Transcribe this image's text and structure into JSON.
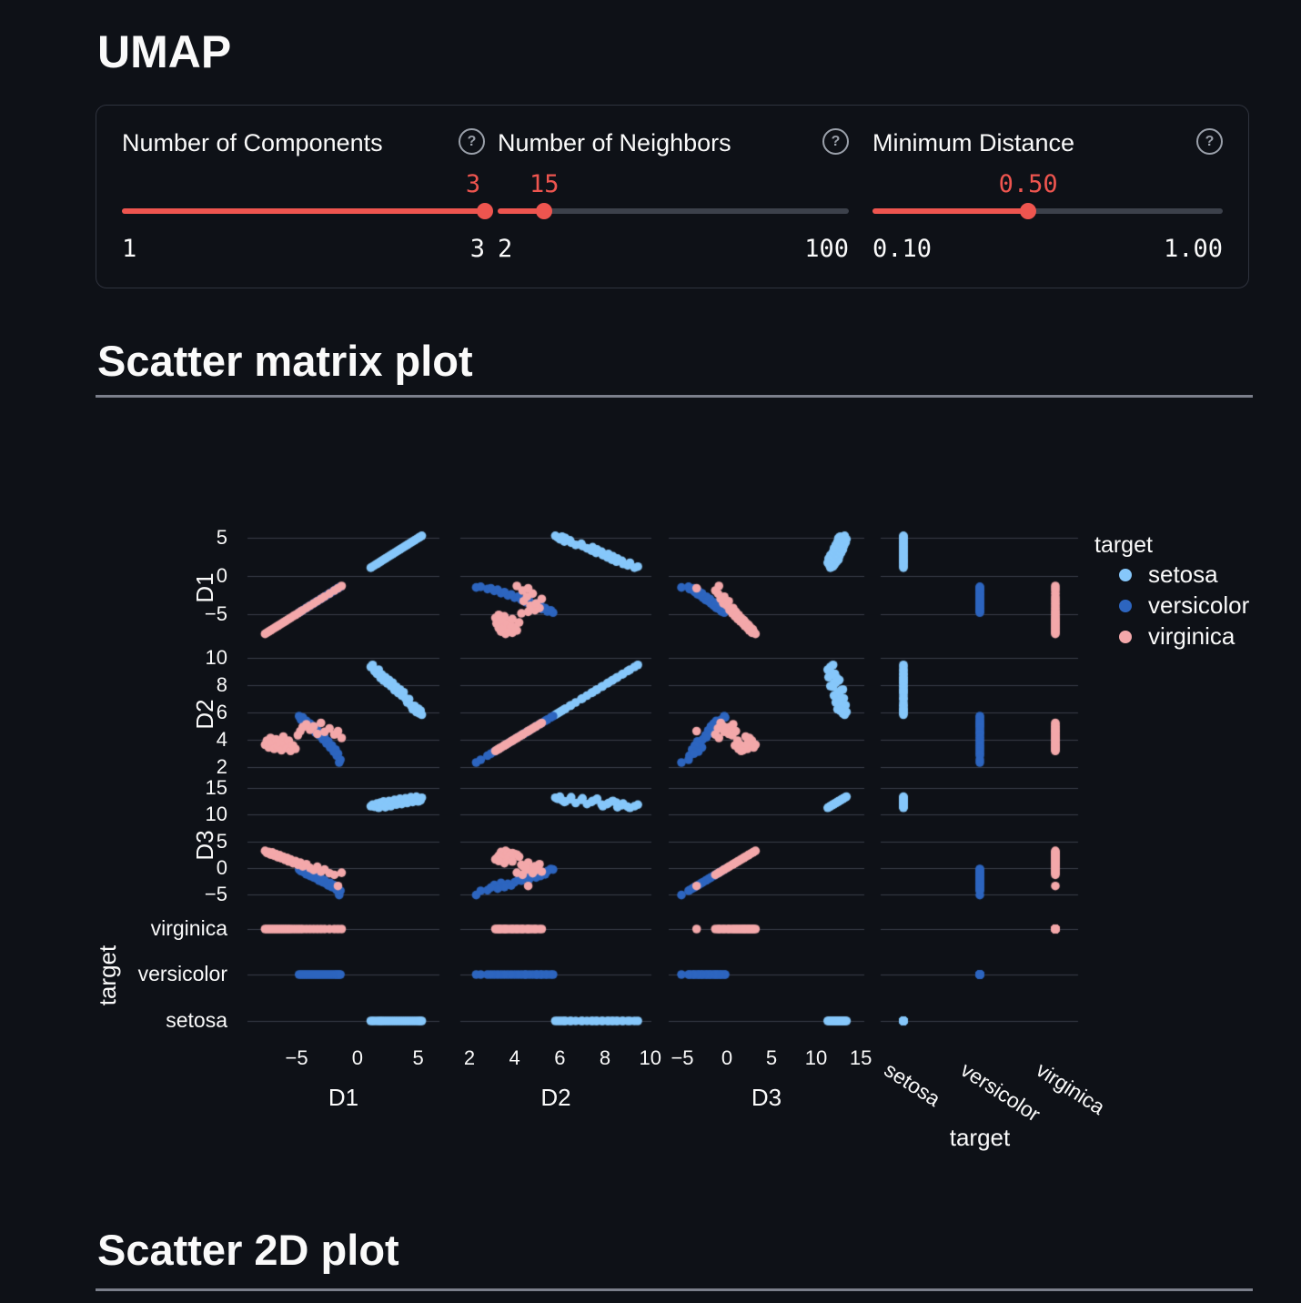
{
  "page": {
    "title": "UMAP"
  },
  "sections": {
    "matrix_heading": "Scatter matrix plot",
    "scatter2d_heading": "Scatter 2D plot"
  },
  "sliders": [
    {
      "label": "Number of Components",
      "value": "3",
      "min": "1",
      "max": "3"
    },
    {
      "label": "Number of Neighbors",
      "value": "15",
      "min": "2",
      "max": "100"
    },
    {
      "label": "Minimum Distance",
      "value": "0.50",
      "min": "0.10",
      "max": "1.00"
    }
  ],
  "colors": {
    "accent": "#ee554f",
    "track": "#3c414b",
    "grid": "#3a3e4a",
    "text": "#fafafa"
  },
  "chart_data": {
    "type": "scatter",
    "subtype": "scatter-matrix",
    "title": "Scatter matrix plot",
    "dims": [
      "D1",
      "D2",
      "D3",
      "target"
    ],
    "legend": {
      "title": "target",
      "items": [
        {
          "label": "setosa",
          "color": "#86c7fa"
        },
        {
          "label": "versicolor",
          "color": "#2d65bf"
        },
        {
          "label": "virginica",
          "color": "#f3a8aa"
        }
      ]
    },
    "x_axes": [
      {
        "label": "D1",
        "ticks": [
          -5,
          0,
          5
        ],
        "range": [
          -9.05,
          6.75
        ]
      },
      {
        "label": "D2",
        "ticks": [
          2,
          4,
          6,
          8,
          10
        ],
        "range": [
          1.6,
          10.05
        ]
      },
      {
        "label": "D3",
        "ticks": [
          -5,
          0,
          5,
          10,
          15
        ],
        "range": [
          -6.53,
          15.4
        ]
      },
      {
        "label": "target",
        "categories": [
          "setosa",
          "versicolor",
          "virginica"
        ]
      }
    ],
    "y_axes": [
      {
        "label": "D1",
        "ticks": [
          5,
          0,
          -5
        ],
        "range": [
          -9.2,
          6.0
        ]
      },
      {
        "label": "D2",
        "ticks": [
          10,
          8,
          6,
          4,
          2
        ],
        "range": [
          1.3,
          10.3
        ]
      },
      {
        "label": "D3",
        "ticks": [
          15,
          10,
          5,
          0,
          -5
        ],
        "range": [
          -7.9,
          16.4
        ]
      },
      {
        "label": "target",
        "categories": [
          "virginica",
          "versicolor",
          "setosa"
        ]
      }
    ],
    "series": [
      {
        "name": "setosa",
        "color": "#86c7fa",
        "points": [
          [
            1.1,
            9.3,
            11.6
          ],
          [
            1.25,
            9.45,
            11.9
          ],
          [
            1.4,
            9.0,
            11.5
          ],
          [
            1.6,
            8.8,
            12.1
          ],
          [
            1.75,
            9.1,
            11.3
          ],
          [
            1.9,
            8.5,
            12.3
          ],
          [
            2.0,
            8.75,
            11.8
          ],
          [
            2.15,
            8.3,
            12.5
          ],
          [
            2.3,
            8.55,
            11.4
          ],
          [
            2.45,
            8.1,
            12.0
          ],
          [
            2.6,
            8.35,
            12.6
          ],
          [
            2.75,
            7.9,
            11.6
          ],
          [
            2.9,
            8.15,
            12.2
          ],
          [
            3.05,
            7.6,
            12.8
          ],
          [
            3.2,
            7.85,
            11.9
          ],
          [
            3.35,
            7.4,
            12.4
          ],
          [
            3.5,
            7.65,
            13.0
          ],
          [
            3.65,
            7.2,
            12.0
          ],
          [
            3.8,
            7.45,
            12.6
          ],
          [
            3.95,
            7.0,
            13.1
          ],
          [
            4.1,
            6.7,
            12.2
          ],
          [
            4.25,
            6.95,
            12.8
          ],
          [
            4.4,
            6.5,
            13.3
          ],
          [
            4.55,
            6.2,
            12.4
          ],
          [
            4.7,
            6.45,
            12.9
          ],
          [
            4.85,
            6.0,
            13.4
          ],
          [
            5.0,
            6.25,
            12.5
          ],
          [
            5.1,
            5.9,
            13.0
          ],
          [
            5.2,
            6.1,
            12.7
          ],
          [
            5.3,
            5.8,
            13.2
          ]
        ]
      },
      {
        "name": "versicolor",
        "color": "#2d65bf",
        "points": [
          [
            -4.8,
            5.7,
            -0.3
          ],
          [
            -4.65,
            5.45,
            -0.6
          ],
          [
            -4.5,
            5.6,
            -0.2
          ],
          [
            -4.35,
            5.2,
            -0.9
          ],
          [
            -4.2,
            5.35,
            -1.2
          ],
          [
            -4.05,
            5.0,
            -0.7
          ],
          [
            -3.9,
            5.15,
            -1.5
          ],
          [
            -3.75,
            4.8,
            -1.1
          ],
          [
            -3.6,
            4.95,
            -1.8
          ],
          [
            -3.45,
            4.5,
            -1.4
          ],
          [
            -3.3,
            4.65,
            -2.1
          ],
          [
            -3.15,
            4.3,
            -2.4
          ],
          [
            -3.0,
            4.45,
            -1.9
          ],
          [
            -2.85,
            4.0,
            -2.7
          ],
          [
            -2.7,
            4.15,
            -2.3
          ],
          [
            -2.55,
            3.7,
            -3.0
          ],
          [
            -2.4,
            3.85,
            -3.3
          ],
          [
            -2.25,
            3.4,
            -2.8
          ],
          [
            -2.1,
            3.55,
            -3.6
          ],
          [
            -1.95,
            3.1,
            -3.2
          ],
          [
            -1.8,
            3.25,
            -3.9
          ],
          [
            -1.7,
            2.8,
            -4.2
          ],
          [
            -1.6,
            2.95,
            -3.7
          ],
          [
            -1.5,
            2.3,
            -5.1
          ],
          [
            -1.4,
            2.5,
            -4.3
          ]
        ]
      },
      {
        "name": "virginica",
        "color": "#f3a8aa",
        "points": [
          [
            -7.6,
            3.6,
            3.2
          ],
          [
            -7.45,
            3.9,
            2.8
          ],
          [
            -7.3,
            3.4,
            3.0
          ],
          [
            -7.15,
            4.1,
            2.5
          ],
          [
            -7.0,
            3.7,
            2.9
          ],
          [
            -6.85,
            3.3,
            2.3
          ],
          [
            -6.7,
            4.0,
            2.6
          ],
          [
            -6.55,
            3.5,
            2.0
          ],
          [
            -6.4,
            3.8,
            2.4
          ],
          [
            -6.25,
            3.2,
            1.8
          ],
          [
            -6.1,
            4.2,
            2.1
          ],
          [
            -5.95,
            3.6,
            1.5
          ],
          [
            -5.8,
            3.35,
            1.9
          ],
          [
            -5.65,
            3.9,
            1.2
          ],
          [
            -5.5,
            3.15,
            1.6
          ],
          [
            -5.3,
            3.55,
            0.9
          ],
          [
            -5.1,
            3.3,
            1.3
          ],
          [
            -4.9,
            4.3,
            0.6
          ],
          [
            -4.7,
            4.6,
            1.0
          ],
          [
            -4.5,
            4.9,
            0.3
          ],
          [
            -4.2,
            5.1,
            0.7
          ],
          [
            -3.9,
            4.7,
            0.0
          ],
          [
            -3.6,
            4.95,
            -0.4
          ],
          [
            -3.3,
            4.4,
            0.2
          ],
          [
            -3.0,
            5.2,
            -0.7
          ],
          [
            -2.7,
            4.55,
            -0.3
          ],
          [
            -2.3,
            4.8,
            -1.0
          ],
          [
            -1.9,
            4.35,
            -1.3
          ],
          [
            -1.6,
            4.6,
            -3.4
          ],
          [
            -1.3,
            4.1,
            -0.9
          ]
        ]
      }
    ]
  }
}
